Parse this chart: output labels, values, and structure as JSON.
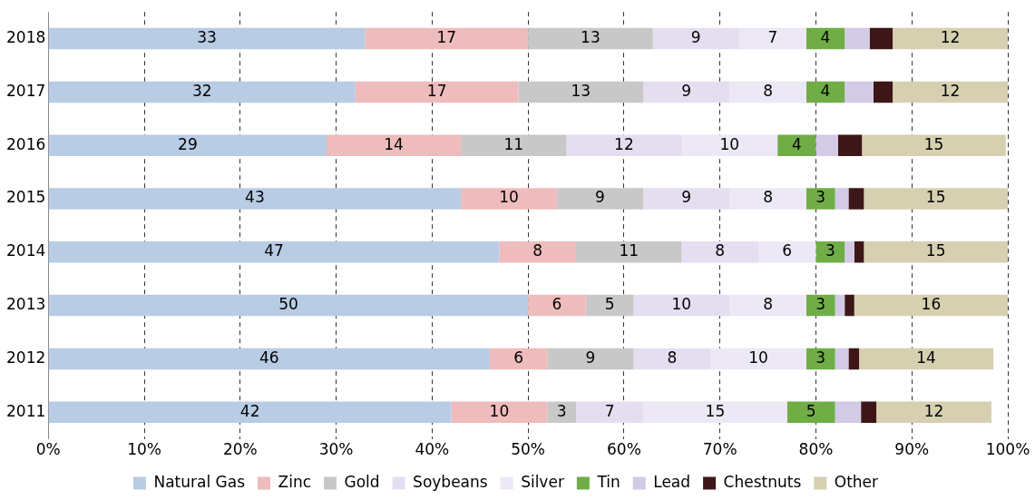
{
  "chart_data": {
    "type": "bar",
    "orientation": "horizontal",
    "stacked": true,
    "grid": "x",
    "legend": "bottom",
    "categories": [
      "2018",
      "2017",
      "2016",
      "2015",
      "2014",
      "2013",
      "2012",
      "2011"
    ],
    "xlim": [
      0,
      100
    ],
    "xticks": [
      {
        "value": 0,
        "label": "0%"
      },
      {
        "value": 10,
        "label": "10%"
      },
      {
        "value": 20,
        "label": "20%"
      },
      {
        "value": 30,
        "label": "30%"
      },
      {
        "value": 40,
        "label": "40%"
      },
      {
        "value": 50,
        "label": "50%"
      },
      {
        "value": 60,
        "label": "60%"
      },
      {
        "value": 70,
        "label": "70%"
      },
      {
        "value": 80,
        "label": "80%"
      },
      {
        "value": 90,
        "label": "90%"
      },
      {
        "value": 100,
        "label": "100%"
      }
    ],
    "series": [
      {
        "name": "Natural Gas",
        "color": "#b8cce4",
        "values": [
          33,
          32,
          29,
          43,
          47,
          50,
          46,
          42
        ],
        "value_labels": [
          "33",
          "32",
          "29",
          "43",
          "47",
          "50",
          "46",
          "42"
        ]
      },
      {
        "name": "Zinc",
        "color": "#eebcbc",
        "values": [
          17,
          17,
          14,
          10,
          8,
          6,
          6,
          10
        ],
        "value_labels": [
          "17",
          "17",
          "14",
          "10",
          "8",
          "6",
          "6",
          "10"
        ]
      },
      {
        "name": "Gold",
        "color": "#c8c8c8",
        "values": [
          13,
          13,
          11,
          9,
          11,
          5,
          9,
          3
        ],
        "value_labels": [
          "13",
          "13",
          "11",
          "9",
          "11",
          "5",
          "9",
          "3"
        ]
      },
      {
        "name": "Soybeans",
        "color": "#e4def0",
        "values": [
          9,
          9,
          12,
          9,
          8,
          10,
          8,
          7
        ],
        "value_labels": [
          "9",
          "9",
          "12",
          "9",
          "8",
          "10",
          "8",
          "7"
        ]
      },
      {
        "name": "Silver",
        "color": "#ece8f5",
        "values": [
          7,
          8,
          10,
          8,
          6,
          8,
          10,
          15
        ],
        "value_labels": [
          "7",
          "8",
          "10",
          "8",
          "6",
          "8",
          "10",
          "15"
        ]
      },
      {
        "name": "Tin",
        "color": "#70ad47",
        "values": [
          4,
          4,
          4,
          3,
          3,
          3,
          3,
          5
        ],
        "value_labels": [
          "4",
          "4",
          "4",
          "3",
          "3",
          "3",
          "3",
          "5"
        ]
      },
      {
        "name": "Lead",
        "color": "#d3cae6",
        "values": [
          2.6,
          3,
          2.3,
          1.4,
          1,
          1,
          1.4,
          2.7
        ],
        "value_labels": [
          null,
          null,
          null,
          null,
          null,
          null,
          null,
          null
        ]
      },
      {
        "name": "Chestnuts",
        "color": "#3d1717",
        "values": [
          2.4,
          2,
          2.5,
          1.6,
          1,
          1,
          1.1,
          1.6
        ],
        "value_labels": [
          null,
          null,
          null,
          null,
          null,
          null,
          null,
          null
        ]
      },
      {
        "name": "Other",
        "color": "#d6d0b0",
        "values": [
          12,
          12,
          15,
          15,
          15,
          16,
          14,
          12
        ],
        "value_labels": [
          "12",
          "12",
          "15",
          "15",
          "15",
          "16",
          "14",
          "12"
        ]
      }
    ]
  }
}
